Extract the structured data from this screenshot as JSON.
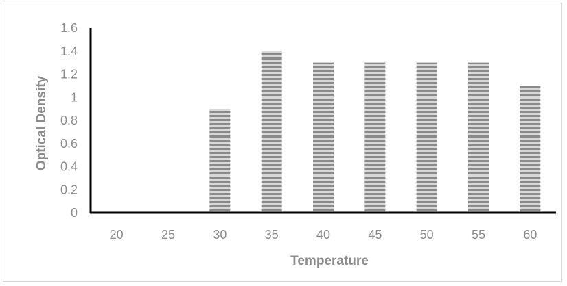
{
  "chart_data": {
    "type": "bar",
    "title": "",
    "xlabel": "Temperature",
    "ylabel": "Optical Density",
    "categories": [
      "20",
      "25",
      "30",
      "35",
      "40",
      "45",
      "50",
      "55",
      "60"
    ],
    "values": [
      0,
      0,
      0.9,
      1.4,
      1.3,
      1.3,
      1.3,
      1.3,
      1.1
    ],
    "y_ticks": [
      "0",
      "0.2",
      "0.4",
      "0.6",
      "0.8",
      "1",
      "1.2",
      "1.4",
      "1.6"
    ],
    "ylim": [
      0,
      1.6
    ],
    "grid": false,
    "legend": "none",
    "bar_fill": "horizontal-striped",
    "colors": {
      "bar_stripe_dark": "#8a8a8a",
      "bar_stripe_light": "#d8d8d8",
      "axis": "#000000",
      "text": "#8c8c8c"
    }
  }
}
